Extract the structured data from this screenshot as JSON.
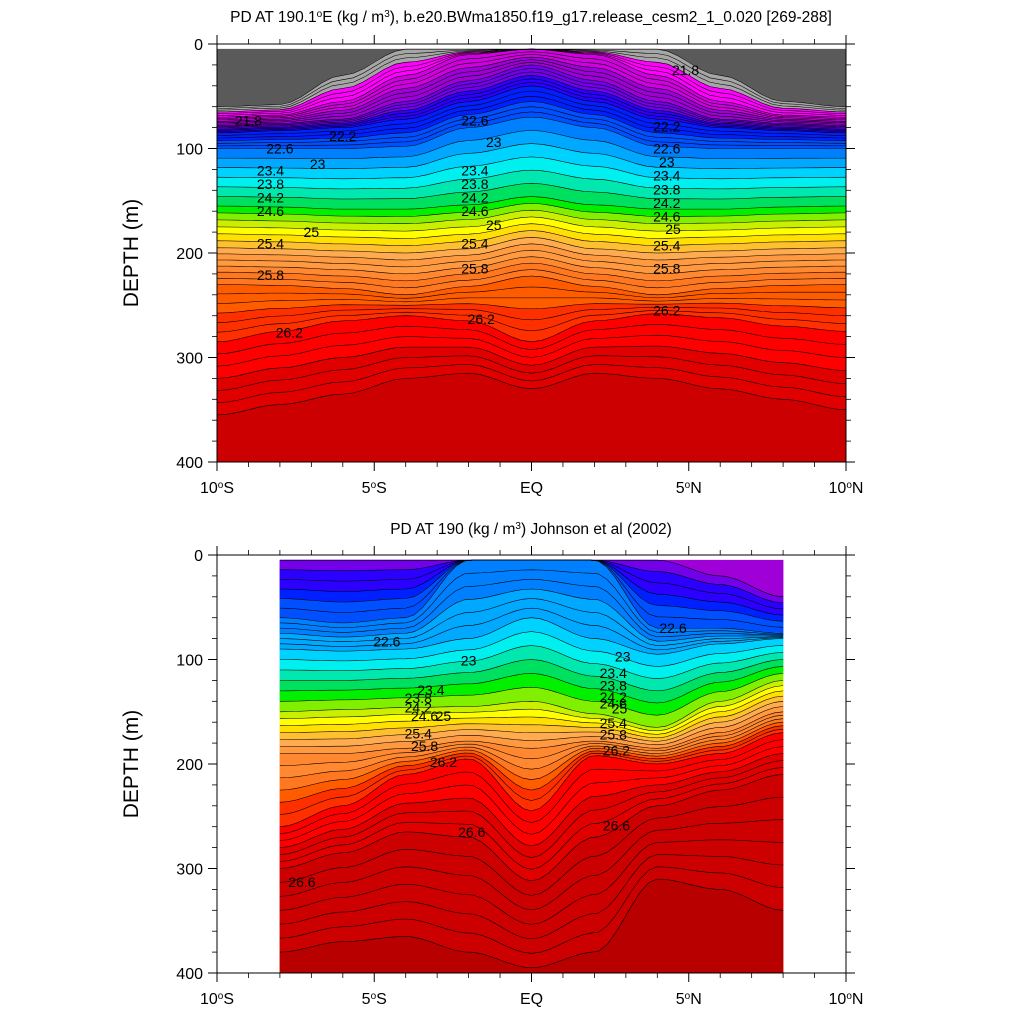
{
  "chart_data": [
    {
      "type": "contour",
      "title": "PD AT 190.1°E (kg / m³), b.e20.BWma1850.f19_g17.release_cesm2_1_0.020 [269-288]",
      "title_parts": {
        "pre": "PD AT 190.1",
        "sup1": "o",
        "mid": "E (kg / m",
        "sup2": "3",
        "post": "), b.e20.BWma1850.f19_g17.release_cesm2_1_0.020 [269-288]"
      },
      "ylabel": "DEPTH (m)",
      "xlabel": "",
      "x_ticks": [
        {
          "lat": -10,
          "num": "10",
          "hemi": "S"
        },
        {
          "lat": -5,
          "num": "5",
          "hemi": "S"
        },
        {
          "lat": 0,
          "num": "EQ",
          "hemi": ""
        },
        {
          "lat": 5,
          "num": "5",
          "hemi": "N"
        },
        {
          "lat": 10,
          "num": "10",
          "hemi": "N"
        }
      ],
      "y_ticks": [
        "0",
        "100",
        "200",
        "300",
        "400"
      ],
      "xlim": [
        -10,
        10
      ],
      "ylim": [
        0,
        400
      ],
      "y_inverted": true,
      "data_lat_range": [
        -10,
        10
      ],
      "data_depth_top": 5,
      "levels": [
        21.0,
        21.2,
        21.4,
        21.6,
        21.8,
        22.0,
        22.2,
        22.4,
        22.6,
        22.8,
        23.0,
        23.2,
        23.4,
        23.6,
        23.8,
        24.0,
        24.2,
        24.4,
        24.6,
        24.8,
        25.0,
        25.2,
        25.4,
        25.6,
        25.8,
        26.0,
        26.2,
        26.4,
        26.6
      ],
      "isopycnal_depths": {
        "lat": [
          -10,
          -8,
          -6,
          -4,
          -2,
          0,
          2,
          4,
          6,
          8,
          10
        ],
        "rows": [
          [
            60,
            58,
            30,
            5,
            5,
            5,
            5,
            5,
            30,
            55,
            60
          ],
          [
            70,
            68,
            55,
            30,
            10,
            5,
            10,
            30,
            55,
            68,
            70
          ],
          [
            78,
            76,
            72,
            55,
            35,
            20,
            35,
            55,
            72,
            76,
            78
          ],
          [
            85,
            83,
            80,
            72,
            55,
            40,
            55,
            72,
            80,
            83,
            85
          ],
          [
            100,
            100,
            100,
            98,
            80,
            70,
            80,
            98,
            100,
            100,
            100
          ],
          [
            155,
            156,
            158,
            158,
            154,
            146,
            154,
            158,
            158,
            156,
            155
          ],
          [
            195,
            196,
            198,
            200,
            196,
            185,
            196,
            200,
            198,
            196,
            195
          ],
          [
            230,
            231,
            234,
            240,
            232,
            222,
            232,
            240,
            234,
            231,
            230
          ],
          [
            285,
            275,
            265,
            260,
            265,
            285,
            265,
            258,
            262,
            270,
            275
          ],
          [
            355,
            345,
            335,
            320,
            315,
            330,
            315,
            320,
            330,
            340,
            350
          ]
        ],
        "values": [
          21.0,
          21.4,
          21.8,
          22.2,
          22.6,
          23.8,
          25.0,
          25.8,
          26.2,
          26.6
        ]
      },
      "contour_labels": [
        {
          "text": "21.8",
          "lat": -9.0,
          "depth": 73
        },
        {
          "text": "22.2",
          "lat": -6.0,
          "depth": 88
        },
        {
          "text": "22.6",
          "lat": -8.0,
          "depth": 100
        },
        {
          "text": "23",
          "lat": -6.8,
          "depth": 115
        },
        {
          "text": "23.4",
          "lat": -8.3,
          "depth": 121
        },
        {
          "text": "23.8",
          "lat": -8.3,
          "depth": 134
        },
        {
          "text": "24.2",
          "lat": -8.3,
          "depth": 147
        },
        {
          "text": "24.6",
          "lat": -8.3,
          "depth": 160
        },
        {
          "text": "25",
          "lat": -7.0,
          "depth": 180
        },
        {
          "text": "25.4",
          "lat": -8.3,
          "depth": 191
        },
        {
          "text": "25.8",
          "lat": -8.3,
          "depth": 221
        },
        {
          "text": "26.2",
          "lat": -7.7,
          "depth": 276
        },
        {
          "text": "22.6",
          "lat": -1.8,
          "depth": 73
        },
        {
          "text": "23",
          "lat": -1.2,
          "depth": 94
        },
        {
          "text": "23.4",
          "lat": -1.8,
          "depth": 121
        },
        {
          "text": "23.8",
          "lat": -1.8,
          "depth": 134
        },
        {
          "text": "24.2",
          "lat": -1.8,
          "depth": 147
        },
        {
          "text": "24.6",
          "lat": -1.8,
          "depth": 160
        },
        {
          "text": "25",
          "lat": -1.2,
          "depth": 173
        },
        {
          "text": "25.4",
          "lat": -1.8,
          "depth": 191
        },
        {
          "text": "25.8",
          "lat": -1.8,
          "depth": 215
        },
        {
          "text": "26.2",
          "lat": -1.6,
          "depth": 263
        },
        {
          "text": "21.8",
          "lat": 4.9,
          "depth": 25
        },
        {
          "text": "22.2",
          "lat": 4.3,
          "depth": 79
        },
        {
          "text": "22.6",
          "lat": 4.3,
          "depth": 100
        },
        {
          "text": "23",
          "lat": 4.3,
          "depth": 113
        },
        {
          "text": "23.4",
          "lat": 4.3,
          "depth": 126
        },
        {
          "text": "23.8",
          "lat": 4.3,
          "depth": 139
        },
        {
          "text": "24.2",
          "lat": 4.3,
          "depth": 152
        },
        {
          "text": "24.6",
          "lat": 4.3,
          "depth": 165
        },
        {
          "text": "25",
          "lat": 4.5,
          "depth": 177
        },
        {
          "text": "25.4",
          "lat": 4.3,
          "depth": 193
        },
        {
          "text": "25.8",
          "lat": 4.3,
          "depth": 215
        },
        {
          "text": "26.2",
          "lat": 4.3,
          "depth": 255
        }
      ]
    },
    {
      "type": "contour",
      "title": "PD AT 190 (kg / m³) Johnson et al (2002)",
      "title_parts": {
        "pre": "PD AT 190 (kg / m",
        "sup1": "3",
        "mid": ") Johnson et al (2002)",
        "sup2": "",
        "post": ""
      },
      "ylabel": "DEPTH (m)",
      "xlabel": "",
      "x_ticks": [
        {
          "lat": -10,
          "num": "10",
          "hemi": "S"
        },
        {
          "lat": -5,
          "num": "5",
          "hemi": "S"
        },
        {
          "lat": 0,
          "num": "EQ",
          "hemi": ""
        },
        {
          "lat": 5,
          "num": "5",
          "hemi": "N"
        },
        {
          "lat": 10,
          "num": "10",
          "hemi": "N"
        }
      ],
      "y_ticks": [
        "0",
        "100",
        "200",
        "300",
        "400"
      ],
      "xlim": [
        -10,
        10
      ],
      "ylim": [
        0,
        400
      ],
      "y_inverted": true,
      "data_lat_range": [
        -8,
        8
      ],
      "data_depth_top": 5,
      "levels": [
        21.0,
        21.2,
        21.4,
        21.6,
        21.8,
        22.0,
        22.2,
        22.4,
        22.6,
        22.8,
        23.0,
        23.2,
        23.4,
        23.6,
        23.8,
        24.0,
        24.2,
        24.4,
        24.6,
        24.8,
        25.0,
        25.2,
        25.4,
        25.6,
        25.8,
        26.0,
        26.2,
        26.4,
        26.6,
        26.8
      ],
      "isopycnal_depths": {
        "lat": [
          -8,
          -6,
          -4,
          -2,
          0,
          2,
          4,
          6,
          8
        ],
        "rows": [
          [
            5,
            5,
            5,
            5,
            5,
            5,
            5,
            20,
            40
          ],
          [
            60,
            65,
            60,
            5,
            5,
            5,
            70,
            70,
            75
          ],
          [
            90,
            92,
            90,
            80,
            60,
            80,
            95,
            85,
            80
          ],
          [
            150,
            148,
            146,
            145,
            140,
            152,
            165,
            140,
            120
          ],
          [
            190,
            190,
            185,
            178,
            185,
            178,
            185,
            170,
            150
          ],
          [
            260,
            240,
            210,
            195,
            245,
            192,
            200,
            190,
            170
          ],
          [
            300,
            285,
            265,
            270,
            312,
            270,
            240,
            225,
            210
          ],
          [
            380,
            370,
            365,
            380,
            395,
            380,
            310,
            320,
            340
          ]
        ],
        "values": [
          21.8,
          22.6,
          23.0,
          24.2,
          25.4,
          26.2,
          26.6,
          26.8
        ]
      },
      "contour_labels": [
        {
          "text": "22.6",
          "lat": -4.6,
          "depth": 83
        },
        {
          "text": "23",
          "lat": -2.0,
          "depth": 101
        },
        {
          "text": "23.4",
          "lat": -3.2,
          "depth": 129
        },
        {
          "text": "23.8",
          "lat": -3.6,
          "depth": 137
        },
        {
          "text": "24.2",
          "lat": -3.6,
          "depth": 146
        },
        {
          "text": "24.6",
          "lat": -3.4,
          "depth": 154
        },
        {
          "text": "25",
          "lat": -2.8,
          "depth": 154
        },
        {
          "text": "25.4",
          "lat": -3.6,
          "depth": 171
        },
        {
          "text": "25.8",
          "lat": -3.4,
          "depth": 183
        },
        {
          "text": "26.2",
          "lat": -2.8,
          "depth": 198
        },
        {
          "text": "26.6",
          "lat": -1.9,
          "depth": 265
        },
        {
          "text": "26.6",
          "lat": -7.3,
          "depth": 313
        },
        {
          "text": "22.6",
          "lat": 4.5,
          "depth": 70
        },
        {
          "text": "23",
          "lat": 2.9,
          "depth": 97
        },
        {
          "text": "23.4",
          "lat": 2.6,
          "depth": 113
        },
        {
          "text": "23.8",
          "lat": 2.6,
          "depth": 125
        },
        {
          "text": "24.2",
          "lat": 2.6,
          "depth": 136
        },
        {
          "text": "24.6",
          "lat": 2.6,
          "depth": 142
        },
        {
          "text": "25",
          "lat": 2.8,
          "depth": 147
        },
        {
          "text": "25.4",
          "lat": 2.6,
          "depth": 161
        },
        {
          "text": "25.8",
          "lat": 2.6,
          "depth": 172
        },
        {
          "text": "26.2",
          "lat": 2.7,
          "depth": 187
        },
        {
          "text": "26.6",
          "lat": 2.7,
          "depth": 259
        }
      ]
    }
  ],
  "colors": [
    "#5a5a5a",
    "#a6a6a6",
    "#ff00ff",
    "#d000e0",
    "#a000d8",
    "#7200e8",
    "#2b00ff",
    "#0020ff",
    "#0050ff",
    "#0080ff",
    "#00a8ff",
    "#00d2ff",
    "#00f0f0",
    "#00e8b0",
    "#00e060",
    "#00f000",
    "#80f000",
    "#c8f000",
    "#ffff00",
    "#ffe000",
    "#ffc030",
    "#ffac50",
    "#ff9a40",
    "#ff8830",
    "#ff7820",
    "#ff5c00",
    "#ff3000",
    "#ff0000",
    "#e00000",
    "#cc0000",
    "#b80000"
  ]
}
